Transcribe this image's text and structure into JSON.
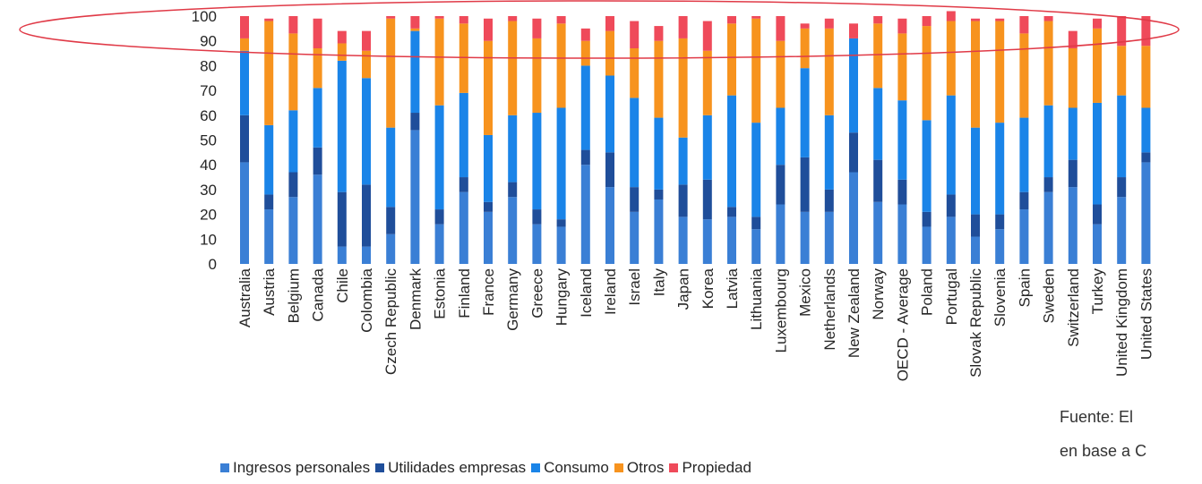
{
  "chart_data": {
    "type": "bar",
    "stacked": true,
    "ylim": [
      0,
      100
    ],
    "yticks": [
      0,
      10,
      20,
      30,
      40,
      50,
      60,
      70,
      80,
      90,
      100
    ],
    "grid": false,
    "legend_position": "bottom",
    "categories": [
      "Australia",
      "Austria",
      "Belgium",
      "Canada",
      "Chile",
      "Colombia",
      "Czech Republic",
      "Denmark",
      "Estonia",
      "Finland",
      "France",
      "Germany",
      "Greece",
      "Hungary",
      "Iceland",
      "Ireland",
      "Israel",
      "Italy",
      "Japan",
      "Korea",
      "Latvia",
      "Lithuania",
      "Luxembourg",
      "Mexico",
      "Netherlands",
      "New Zealand",
      "Norway",
      "OECD - Average",
      "Poland",
      "Portugal",
      "Slovak Republic",
      "Slovenia",
      "Spain",
      "Sweden",
      "Switzerland",
      "Turkey",
      "United Kingdom",
      "United States"
    ],
    "series": [
      {
        "name": "Ingresos personales",
        "color": "#3a7fd5",
        "values": [
          41,
          22,
          27,
          36,
          7,
          7,
          12,
          54,
          16,
          29,
          21,
          27,
          16,
          15,
          40,
          31,
          21,
          26,
          19,
          18,
          19,
          14,
          24,
          21,
          21,
          37,
          25,
          24,
          15,
          19,
          11,
          14,
          22,
          29,
          31,
          16,
          27,
          41
        ]
      },
      {
        "name": "Utilidades empresas",
        "color": "#1f4e9a",
        "values": [
          19,
          6,
          10,
          11,
          22,
          25,
          11,
          7,
          6,
          6,
          4,
          6,
          6,
          3,
          6,
          14,
          10,
          4,
          13,
          16,
          4,
          5,
          16,
          22,
          9,
          16,
          17,
          10,
          6,
          9,
          9,
          6,
          7,
          6,
          11,
          8,
          8,
          4
        ]
      },
      {
        "name": "Consumo",
        "color": "#1a84e8",
        "values": [
          26,
          28,
          25,
          24,
          53,
          43,
          32,
          33,
          42,
          34,
          27,
          27,
          39,
          45,
          34,
          31,
          36,
          29,
          19,
          26,
          45,
          38,
          23,
          36,
          30,
          38,
          29,
          32,
          37,
          40,
          35,
          37,
          30,
          29,
          21,
          41,
          33,
          18
        ]
      },
      {
        "name": "Otros",
        "color": "#f7931e",
        "values": [
          5,
          42,
          31,
          16,
          7,
          11,
          44,
          1,
          35,
          28,
          38,
          38,
          30,
          34,
          10,
          18,
          20,
          31,
          40,
          26,
          29,
          42,
          27,
          16,
          35,
          0,
          26,
          27,
          38,
          30,
          43,
          41,
          34,
          34,
          24,
          30,
          20,
          25
        ]
      },
      {
        "name": "Propiedad",
        "color": "#ef4a5a",
        "values": [
          9,
          1,
          7,
          12,
          5,
          8,
          1,
          5,
          1,
          3,
          9,
          2,
          8,
          3,
          5,
          6,
          11,
          6,
          9,
          12,
          3,
          1,
          10,
          2,
          4,
          6,
          3,
          6,
          4,
          4,
          1,
          1,
          7,
          2,
          7,
          4,
          12,
          12
        ]
      }
    ],
    "annotation": {
      "shape": "ellipse",
      "color": "#e03a47"
    }
  },
  "source_note": {
    "line1": "Fuente:  El",
    "line2": "en base a C"
  }
}
